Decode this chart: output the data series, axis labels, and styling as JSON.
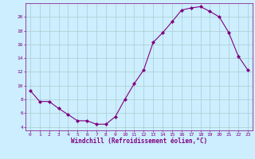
{
  "x": [
    0,
    1,
    2,
    3,
    4,
    5,
    6,
    7,
    8,
    9,
    10,
    11,
    12,
    13,
    14,
    15,
    16,
    17,
    18,
    19,
    20,
    21,
    22,
    23
  ],
  "y": [
    9.3,
    7.7,
    7.7,
    6.7,
    5.8,
    4.9,
    4.9,
    4.4,
    4.4,
    5.5,
    8.0,
    10.3,
    12.3,
    16.3,
    17.7,
    19.3,
    21.0,
    21.3,
    21.5,
    20.8,
    20.0,
    17.7,
    14.3,
    12.3
  ],
  "line_color": "#800080",
  "marker": "D",
  "marker_size": 2,
  "bg_color": "#cceeff",
  "grid_color": "#aacccc",
  "xlabel": "Windchill (Refroidissement éolien,°C)",
  "xlim": [
    -0.5,
    23.5
  ],
  "ylim": [
    3.5,
    22
  ],
  "yticks": [
    4,
    6,
    8,
    10,
    12,
    14,
    16,
    18,
    20
  ],
  "xticks": [
    0,
    1,
    2,
    3,
    4,
    5,
    6,
    7,
    8,
    9,
    10,
    11,
    12,
    13,
    14,
    15,
    16,
    17,
    18,
    19,
    20,
    21,
    22,
    23
  ],
  "tick_color": "#800080",
  "label_color": "#800080",
  "tick_fontsize": 4.5,
  "xlabel_fontsize": 5.5,
  "linewidth": 0.8
}
